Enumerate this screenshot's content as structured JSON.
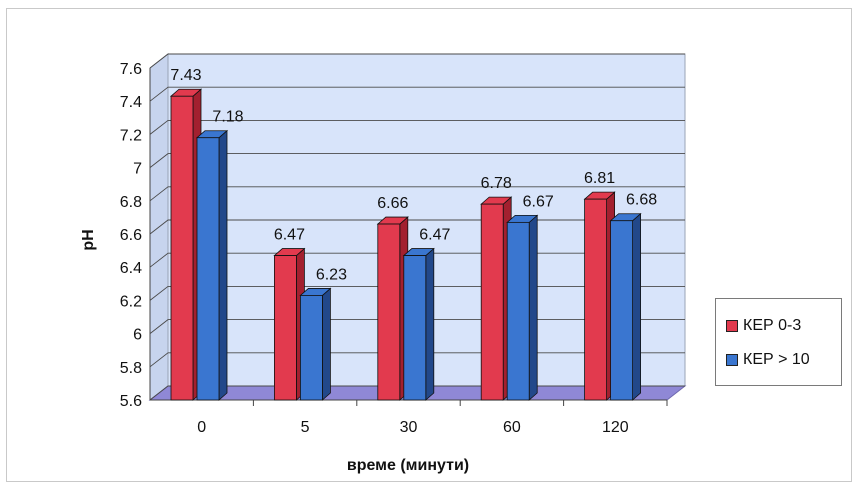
{
  "chart_data": {
    "type": "bar",
    "categories": [
      "0",
      "5",
      "30",
      "60",
      "120"
    ],
    "series": [
      {
        "name": "КЕР 0-3",
        "values": [
          7.43,
          6.47,
          6.66,
          6.78,
          6.81
        ],
        "color": "#e23a4e",
        "color_dark": "#a3202f",
        "value_labels": [
          "7.43",
          "6.47",
          "6.66",
          "6.78",
          "6.81"
        ]
      },
      {
        "name": "КЕР > 10",
        "values": [
          7.18,
          6.23,
          6.47,
          6.67,
          6.68
        ],
        "color": "#3a76d0",
        "color_dark": "#22488a",
        "value_labels": [
          "7.18",
          "6.23",
          "6.47",
          "6.67",
          "6.68"
        ]
      }
    ],
    "ylim": [
      5.6,
      7.6
    ],
    "yticks": [
      "7.6",
      "7.4",
      "7.2",
      "7",
      "6.8",
      "6.6",
      "6.4",
      "6.2",
      "6",
      "5.8",
      "5.6"
    ],
    "xlabel": "време (минути)",
    "ylabel": "pH",
    "grid": true,
    "legend_position": "right",
    "plot_background": "#d8e4fa",
    "floor_color": "#8f88d6"
  }
}
